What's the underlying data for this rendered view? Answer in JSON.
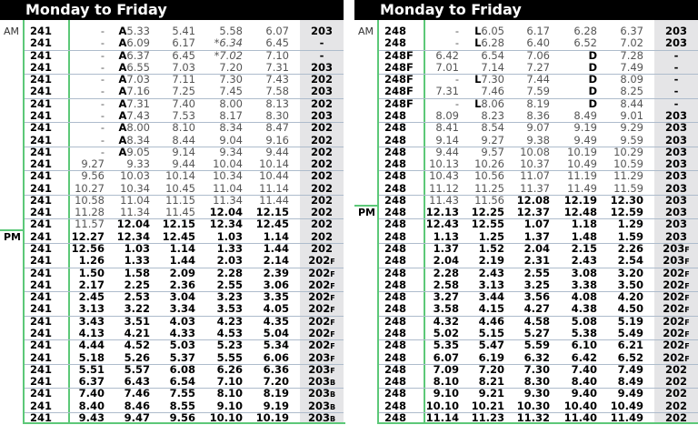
{
  "tables": [
    {
      "title": "Monday to Friday",
      "am_label": "AM",
      "pm_label": "PM",
      "pm_row": 17,
      "rows": [
        {
          "route": "241",
          "times": [
            "-",
            "A5.33",
            "5.41",
            "5.58",
            "6.07"
          ],
          "note": "203",
          "bold_from": 5
        },
        {
          "route": "241",
          "times": [
            "-",
            "A6.09",
            "6.17",
            "*6.34",
            "6.45"
          ],
          "note": "-",
          "bold_from": 5
        },
        {
          "route": "241",
          "times": [
            "-",
            "A6.37",
            "6.45",
            "*7.02",
            "7.10"
          ],
          "note": "-",
          "bold_from": 5
        },
        {
          "route": "241",
          "times": [
            "-",
            "A6.55",
            "7.03",
            "7.20",
            "7.31"
          ],
          "note": "203",
          "bold_from": 5
        },
        {
          "route": "241",
          "times": [
            "-",
            "A7.03",
            "7.11",
            "7.30",
            "7.43"
          ],
          "note": "202",
          "bold_from": 5
        },
        {
          "route": "241",
          "times": [
            "-",
            "A7.16",
            "7.25",
            "7.45",
            "7.58"
          ],
          "note": "203",
          "bold_from": 5
        },
        {
          "route": "241",
          "times": [
            "-",
            "A7.31",
            "7.40",
            "8.00",
            "8.13"
          ],
          "note": "202",
          "bold_from": 5
        },
        {
          "route": "241",
          "times": [
            "-",
            "A7.43",
            "7.53",
            "8.17",
            "8.30"
          ],
          "note": "203",
          "bold_from": 5
        },
        {
          "route": "241",
          "times": [
            "-",
            "A8.00",
            "8.10",
            "8.34",
            "8.47"
          ],
          "note": "202",
          "bold_from": 5
        },
        {
          "route": "241",
          "times": [
            "-",
            "A8.34",
            "8.44",
            "9.04",
            "9.16"
          ],
          "note": "202",
          "bold_from": 5
        },
        {
          "route": "241",
          "times": [
            "-",
            "A9.05",
            "9.14",
            "9.34",
            "9.44"
          ],
          "note": "202",
          "bold_from": 5
        },
        {
          "route": "241",
          "times": [
            "9.27",
            "9.33",
            "9.44",
            "10.04",
            "10.14"
          ],
          "note": "202",
          "bold_from": 5
        },
        {
          "route": "241",
          "times": [
            "9.56",
            "10.03",
            "10.14",
            "10.34",
            "10.44"
          ],
          "note": "202",
          "bold_from": 5
        },
        {
          "route": "241",
          "times": [
            "10.27",
            "10.34",
            "10.45",
            "11.04",
            "11.14"
          ],
          "note": "202",
          "bold_from": 5
        },
        {
          "route": "241",
          "times": [
            "10.58",
            "11.04",
            "11.15",
            "11.34",
            "11.44"
          ],
          "note": "202",
          "bold_from": 5
        },
        {
          "route": "241",
          "times": [
            "11.28",
            "11.34",
            "11.45",
            "12.04",
            "12.15"
          ],
          "note": "202",
          "bold_from": 3
        },
        {
          "route": "241",
          "times": [
            "11.57",
            "12.04",
            "12.15",
            "12.34",
            "12.45"
          ],
          "note": "202",
          "bold_from": 1
        },
        {
          "route": "241",
          "times": [
            "12.27",
            "12.34",
            "12.45",
            "1.03",
            "1.14"
          ],
          "note": "202",
          "bold_from": 0
        },
        {
          "route": "241",
          "times": [
            "12.56",
            "1.03",
            "1.14",
            "1.33",
            "1.44"
          ],
          "note": "202",
          "bold_from": 0
        },
        {
          "route": "241",
          "times": [
            "1.26",
            "1.33",
            "1.44",
            "2.03",
            "2.14"
          ],
          "note": "202F",
          "bold_from": 0
        },
        {
          "route": "241",
          "times": [
            "1.50",
            "1.58",
            "2.09",
            "2.28",
            "2.39"
          ],
          "note": "202F",
          "bold_from": 0
        },
        {
          "route": "241",
          "times": [
            "2.17",
            "2.25",
            "2.36",
            "2.55",
            "3.06"
          ],
          "note": "202F",
          "bold_from": 0
        },
        {
          "route": "241",
          "times": [
            "2.45",
            "2.53",
            "3.04",
            "3.23",
            "3.35"
          ],
          "note": "202F",
          "bold_from": 0
        },
        {
          "route": "241",
          "times": [
            "3.13",
            "3.22",
            "3.34",
            "3.53",
            "4.05"
          ],
          "note": "202F",
          "bold_from": 0
        },
        {
          "route": "241",
          "times": [
            "3.43",
            "3.51",
            "4.03",
            "4.23",
            "4.35"
          ],
          "note": "202F",
          "bold_from": 0
        },
        {
          "route": "241",
          "times": [
            "4.13",
            "4.21",
            "4.33",
            "4.53",
            "5.04"
          ],
          "note": "202F",
          "bold_from": 0
        },
        {
          "route": "241",
          "times": [
            "4.44",
            "4.52",
            "5.03",
            "5.23",
            "5.34"
          ],
          "note": "202F",
          "bold_from": 0
        },
        {
          "route": "241",
          "times": [
            "5.18",
            "5.26",
            "5.37",
            "5.55",
            "6.06"
          ],
          "note": "203F",
          "bold_from": 0
        },
        {
          "route": "241",
          "times": [
            "5.51",
            "5.57",
            "6.08",
            "6.26",
            "6.36"
          ],
          "note": "203F",
          "bold_from": 0
        },
        {
          "route": "241",
          "times": [
            "6.37",
            "6.43",
            "6.54",
            "7.10",
            "7.20"
          ],
          "note": "203B",
          "bold_from": 0
        },
        {
          "route": "241",
          "times": [
            "7.40",
            "7.46",
            "7.55",
            "8.10",
            "8.19"
          ],
          "note": "203B",
          "bold_from": 0
        },
        {
          "route": "241",
          "times": [
            "8.40",
            "8.46",
            "8.55",
            "9.10",
            "9.19"
          ],
          "note": "203B",
          "bold_from": 0
        },
        {
          "route": "241",
          "times": [
            "9.43",
            "9.47",
            "9.56",
            "10.10",
            "10.19"
          ],
          "note": "203B",
          "bold_from": 0
        }
      ]
    },
    {
      "title": "Monday to Friday",
      "am_label": "AM",
      "pm_label": "PM",
      "pm_row": 15,
      "rows": [
        {
          "route": "248",
          "times": [
            "-",
            "L6.05",
            "6.17",
            "6.28",
            "6.37"
          ],
          "note": "203",
          "bold_from": 5
        },
        {
          "route": "248",
          "times": [
            "-",
            "L6.28",
            "6.40",
            "6.52",
            "7.02"
          ],
          "note": "203",
          "bold_from": 5
        },
        {
          "route": "248F",
          "times": [
            "6.42",
            "6.54",
            "7.06",
            "D",
            "7.28"
          ],
          "note": "-",
          "bold_from": 5
        },
        {
          "route": "248F",
          "times": [
            "7.01",
            "7.14",
            "7.27",
            "D",
            "7.49"
          ],
          "note": "-",
          "bold_from": 5
        },
        {
          "route": "248F",
          "times": [
            "-",
            "L7.30",
            "7.44",
            "D",
            "8.09"
          ],
          "note": "-",
          "bold_from": 5
        },
        {
          "route": "248F",
          "times": [
            "7.31",
            "7.46",
            "7.59",
            "D",
            "8.25"
          ],
          "note": "-",
          "bold_from": 5
        },
        {
          "route": "248F",
          "times": [
            "-",
            "L8.06",
            "8.19",
            "D",
            "8.44"
          ],
          "note": "-",
          "bold_from": 5
        },
        {
          "route": "248",
          "times": [
            "8.09",
            "8.23",
            "8.36",
            "8.49",
            "9.01"
          ],
          "note": "203",
          "bold_from": 5
        },
        {
          "route": "248",
          "times": [
            "8.41",
            "8.54",
            "9.07",
            "9.19",
            "9.29"
          ],
          "note": "203",
          "bold_from": 5
        },
        {
          "route": "248",
          "times": [
            "9.14",
            "9.27",
            "9.38",
            "9.49",
            "9.59"
          ],
          "note": "203",
          "bold_from": 5
        },
        {
          "route": "248",
          "times": [
            "9.44",
            "9.57",
            "10.08",
            "10.19",
            "10.29"
          ],
          "note": "203",
          "bold_from": 5
        },
        {
          "route": "248",
          "times": [
            "10.13",
            "10.26",
            "10.37",
            "10.49",
            "10.59"
          ],
          "note": "203",
          "bold_from": 5
        },
        {
          "route": "248",
          "times": [
            "10.43",
            "10.56",
            "11.07",
            "11.19",
            "11.29"
          ],
          "note": "203",
          "bold_from": 5
        },
        {
          "route": "248",
          "times": [
            "11.12",
            "11.25",
            "11.37",
            "11.49",
            "11.59"
          ],
          "note": "203",
          "bold_from": 5
        },
        {
          "route": "248",
          "times": [
            "11.43",
            "11.56",
            "12.08",
            "12.19",
            "12.30"
          ],
          "note": "203",
          "bold_from": 2
        },
        {
          "route": "248",
          "times": [
            "12.13",
            "12.25",
            "12.37",
            "12.48",
            "12.59"
          ],
          "note": "203",
          "bold_from": 0
        },
        {
          "route": "248",
          "times": [
            "12.43",
            "12.55",
            "1.07",
            "1.18",
            "1.29"
          ],
          "note": "203",
          "bold_from": 0
        },
        {
          "route": "248",
          "times": [
            "1.13",
            "1.25",
            "1.37",
            "1.48",
            "1.59"
          ],
          "note": "203",
          "bold_from": 0
        },
        {
          "route": "248",
          "times": [
            "1.37",
            "1.52",
            "2.04",
            "2.15",
            "2.26"
          ],
          "note": "203F",
          "bold_from": 0
        },
        {
          "route": "248",
          "times": [
            "2.04",
            "2.19",
            "2.31",
            "2.43",
            "2.54"
          ],
          "note": "203F",
          "bold_from": 0
        },
        {
          "route": "248",
          "times": [
            "2.28",
            "2.43",
            "2.55",
            "3.08",
            "3.20"
          ],
          "note": "202F",
          "bold_from": 0
        },
        {
          "route": "248",
          "times": [
            "2.58",
            "3.13",
            "3.25",
            "3.38",
            "3.50"
          ],
          "note": "202F",
          "bold_from": 0
        },
        {
          "route": "248",
          "times": [
            "3.27",
            "3.44",
            "3.56",
            "4.08",
            "4.20"
          ],
          "note": "202F",
          "bold_from": 0
        },
        {
          "route": "248",
          "times": [
            "3.58",
            "4.15",
            "4.27",
            "4.38",
            "4.50"
          ],
          "note": "202F",
          "bold_from": 0
        },
        {
          "route": "248",
          "times": [
            "4.32",
            "4.46",
            "4.58",
            "5.08",
            "5.19"
          ],
          "note": "202F",
          "bold_from": 0
        },
        {
          "route": "248",
          "times": [
            "5.02",
            "5.15",
            "5.27",
            "5.38",
            "5.49"
          ],
          "note": "202F",
          "bold_from": 0
        },
        {
          "route": "248",
          "times": [
            "5.35",
            "5.47",
            "5.59",
            "6.10",
            "6.21"
          ],
          "note": "202F",
          "bold_from": 0
        },
        {
          "route": "248",
          "times": [
            "6.07",
            "6.19",
            "6.32",
            "6.42",
            "6.52"
          ],
          "note": "202F",
          "bold_from": 0
        },
        {
          "route": "248",
          "times": [
            "7.09",
            "7.20",
            "7.30",
            "7.40",
            "7.49"
          ],
          "note": "202",
          "bold_from": 0
        },
        {
          "route": "248",
          "times": [
            "8.10",
            "8.21",
            "8.30",
            "8.40",
            "8.49"
          ],
          "note": "202",
          "bold_from": 0
        },
        {
          "route": "248",
          "times": [
            "9.10",
            "9.21",
            "9.30",
            "9.40",
            "9.49"
          ],
          "note": "202",
          "bold_from": 0
        },
        {
          "route": "248",
          "times": [
            "10.10",
            "10.21",
            "10.30",
            "10.40",
            "10.49"
          ],
          "note": "202",
          "bold_from": 0
        },
        {
          "route": "248",
          "times": [
            "11.14",
            "11.23",
            "11.32",
            "11.40",
            "11.49"
          ],
          "note": "202",
          "bold_from": 0
        }
      ]
    }
  ]
}
